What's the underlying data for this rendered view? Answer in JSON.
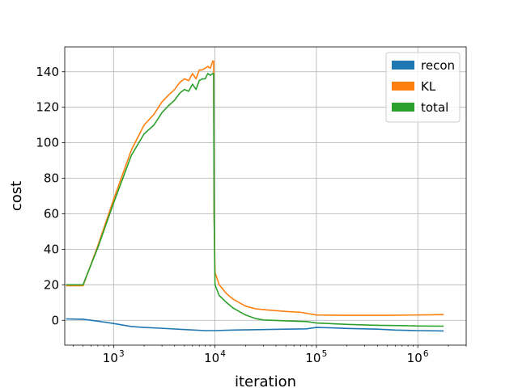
{
  "chart_data": {
    "type": "line",
    "title": "",
    "xlabel": "iteration",
    "ylabel": "cost",
    "xscale": "log",
    "xlim": [
      330,
      3000000
    ],
    "ylim": [
      -14,
      154
    ],
    "grid": true,
    "legend_position": "top-right",
    "x_ticks": [
      {
        "value": 1000,
        "base": "10",
        "exp": "3"
      },
      {
        "value": 10000,
        "base": "10",
        "exp": "4"
      },
      {
        "value": 100000,
        "base": "10",
        "exp": "5"
      },
      {
        "value": 1000000,
        "base": "10",
        "exp": "6"
      }
    ],
    "y_ticks": [
      0,
      20,
      40,
      60,
      80,
      100,
      120,
      140
    ],
    "series": [
      {
        "name": "recon",
        "color": "#1f77b4",
        "points": [
          [
            340,
            0.8
          ],
          [
            500,
            0.6
          ],
          [
            700,
            -0.5
          ],
          [
            1000,
            -1.8
          ],
          [
            1500,
            -3.5
          ],
          [
            2000,
            -4.0
          ],
          [
            3000,
            -4.5
          ],
          [
            5000,
            -5.2
          ],
          [
            8000,
            -5.8
          ],
          [
            10000,
            -5.8
          ],
          [
            15000,
            -5.5
          ],
          [
            30000,
            -5.2
          ],
          [
            50000,
            -5.0
          ],
          [
            80000,
            -4.8
          ],
          [
            100000,
            -4.0
          ],
          [
            150000,
            -4.3
          ],
          [
            200000,
            -4.6
          ],
          [
            400000,
            -5.0
          ],
          [
            600000,
            -5.5
          ],
          [
            1000000,
            -5.8
          ],
          [
            1800000,
            -6.0
          ]
        ]
      },
      {
        "name": "KL",
        "color": "#ff7f0e",
        "points": [
          [
            340,
            19.5
          ],
          [
            500,
            19.5
          ],
          [
            700,
            42
          ],
          [
            1000,
            68
          ],
          [
            1500,
            96
          ],
          [
            2000,
            110
          ],
          [
            2500,
            116
          ],
          [
            3000,
            123
          ],
          [
            3500,
            127
          ],
          [
            4000,
            130
          ],
          [
            4500,
            134
          ],
          [
            5000,
            136
          ],
          [
            5500,
            135
          ],
          [
            6000,
            139
          ],
          [
            6500,
            136
          ],
          [
            7000,
            141
          ],
          [
            7500,
            141
          ],
          [
            8000,
            142
          ],
          [
            8500,
            143
          ],
          [
            9000,
            142
          ],
          [
            9500,
            146
          ],
          [
            9700,
            146
          ],
          [
            9800,
            60
          ],
          [
            10000,
            27
          ],
          [
            11000,
            20
          ],
          [
            13000,
            15
          ],
          [
            15000,
            12
          ],
          [
            20000,
            8
          ],
          [
            25000,
            6.5
          ],
          [
            30000,
            6
          ],
          [
            50000,
            5
          ],
          [
            70000,
            4.5
          ],
          [
            100000,
            3
          ],
          [
            200000,
            2.8
          ],
          [
            500000,
            2.8
          ],
          [
            1000000,
            3
          ],
          [
            1800000,
            3.2
          ]
        ]
      },
      {
        "name": "total",
        "color": "#2ca02c",
        "points": [
          [
            340,
            20
          ],
          [
            500,
            20
          ],
          [
            700,
            41
          ],
          [
            1000,
            66
          ],
          [
            1500,
            93
          ],
          [
            2000,
            105
          ],
          [
            2500,
            110
          ],
          [
            3000,
            117
          ],
          [
            3500,
            121
          ],
          [
            4000,
            124
          ],
          [
            4500,
            128
          ],
          [
            5000,
            130
          ],
          [
            5500,
            129
          ],
          [
            6000,
            133
          ],
          [
            6500,
            130
          ],
          [
            7000,
            135
          ],
          [
            7500,
            136
          ],
          [
            8000,
            136
          ],
          [
            8500,
            139
          ],
          [
            9000,
            138
          ],
          [
            9500,
            139
          ],
          [
            9700,
            139
          ],
          [
            9800,
            60
          ],
          [
            10000,
            20
          ],
          [
            11000,
            14
          ],
          [
            13000,
            10
          ],
          [
            15000,
            7
          ],
          [
            20000,
            3
          ],
          [
            25000,
            1
          ],
          [
            30000,
            0.2
          ],
          [
            50000,
            -0.3
          ],
          [
            80000,
            -0.7
          ],
          [
            100000,
            -1.5
          ],
          [
            200000,
            -2.3
          ],
          [
            400000,
            -2.8
          ],
          [
            700000,
            -3.0
          ],
          [
            1000000,
            -3.2
          ],
          [
            1800000,
            -3.3
          ]
        ]
      }
    ]
  }
}
